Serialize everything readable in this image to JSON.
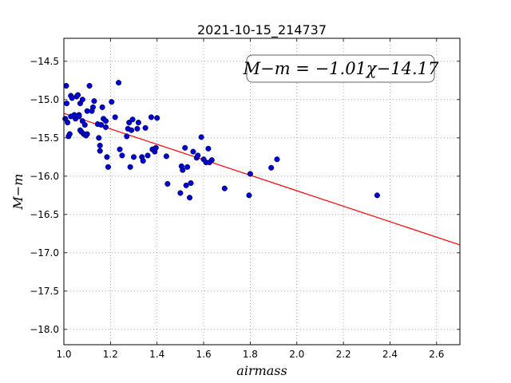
{
  "chart_data": {
    "type": "scatter",
    "title": "2021-10-15_214737",
    "xlabel": "airmass",
    "ylabel": "M−m",
    "xlim": [
      1.0,
      2.7
    ],
    "ylim": [
      -18.2,
      -14.2
    ],
    "y_inverted": true,
    "grid": true,
    "x_ticks": [
      1.0,
      1.2,
      1.4,
      1.6,
      1.8,
      2.0,
      2.2,
      2.4,
      2.6
    ],
    "x_tick_labels": [
      "1.0",
      "1.2",
      "1.4",
      "1.6",
      "1.8",
      "2.0",
      "2.2",
      "2.4",
      "2.6"
    ],
    "y_ticks": [
      -14.5,
      -15.0,
      -15.5,
      -16.0,
      -16.5,
      -17.0,
      -17.5,
      -18.0
    ],
    "y_tick_labels": [
      "−14.5",
      "−15.0",
      "−15.5",
      "−16.0",
      "−16.5",
      "−17.0",
      "−17.5",
      "−18.0"
    ],
    "annotation": "M−m = −1.01χ−14.17",
    "fit": {
      "slope": -1.01,
      "intercept": -14.17,
      "color": "#ff0000"
    },
    "point_color": "#0000cc",
    "points": [
      [
        1.006,
        -15.25
      ],
      [
        1.01,
        -14.82
      ],
      [
        1.012,
        -15.05
      ],
      [
        1.016,
        -15.3
      ],
      [
        1.02,
        -15.48
      ],
      [
        1.025,
        -15.45
      ],
      [
        1.03,
        -14.95
      ],
      [
        1.03,
        -15.22
      ],
      [
        1.035,
        -14.98
      ],
      [
        1.045,
        -15.2
      ],
      [
        1.05,
        -15.25
      ],
      [
        1.055,
        -14.96
      ],
      [
        1.06,
        -14.94
      ],
      [
        1.065,
        -15.2
      ],
      [
        1.065,
        -15.22
      ],
      [
        1.07,
        -15.05
      ],
      [
        1.07,
        -15.4
      ],
      [
        1.075,
        -15.42
      ],
      [
        1.08,
        -15.0
      ],
      [
        1.08,
        -15.28
      ],
      [
        1.085,
        -15.45
      ],
      [
        1.09,
        -15.33
      ],
      [
        1.095,
        -15.47
      ],
      [
        1.1,
        -15.45
      ],
      [
        1.1,
        -15.15
      ],
      [
        1.11,
        -14.82
      ],
      [
        1.12,
        -15.15
      ],
      [
        1.125,
        -15.1
      ],
      [
        1.13,
        -15.02
      ],
      [
        1.145,
        -15.32
      ],
      [
        1.15,
        -15.5
      ],
      [
        1.155,
        -15.6
      ],
      [
        1.155,
        -15.67
      ],
      [
        1.16,
        -15.33
      ],
      [
        1.165,
        -15.1
      ],
      [
        1.17,
        -15.25
      ],
      [
        1.18,
        -15.28
      ],
      [
        1.18,
        -15.36
      ],
      [
        1.185,
        -15.75
      ],
      [
        1.19,
        -15.88
      ],
      [
        1.205,
        -15.03
      ],
      [
        1.22,
        -15.23
      ],
      [
        1.235,
        -14.78
      ],
      [
        1.24,
        -15.65
      ],
      [
        1.25,
        -15.73
      ],
      [
        1.27,
        -15.48
      ],
      [
        1.275,
        -15.38
      ],
      [
        1.28,
        -15.3
      ],
      [
        1.285,
        -15.88
      ],
      [
        1.29,
        -15.4
      ],
      [
        1.295,
        -15.26
      ],
      [
        1.3,
        -15.75
      ],
      [
        1.315,
        -15.38
      ],
      [
        1.32,
        -15.3
      ],
      [
        1.335,
        -15.75
      ],
      [
        1.34,
        -15.8
      ],
      [
        1.35,
        -15.37
      ],
      [
        1.36,
        -15.73
      ],
      [
        1.375,
        -15.23
      ],
      [
        1.38,
        -15.65
      ],
      [
        1.385,
        -15.65
      ],
      [
        1.39,
        -15.68
      ],
      [
        1.395,
        -15.63
      ],
      [
        1.4,
        -15.24
      ],
      [
        1.44,
        -15.74
      ],
      [
        1.445,
        -16.1
      ],
      [
        1.5,
        -16.22
      ],
      [
        1.505,
        -15.87
      ],
      [
        1.51,
        -15.92
      ],
      [
        1.52,
        -15.63
      ],
      [
        1.525,
        -16.12
      ],
      [
        1.53,
        -15.88
      ],
      [
        1.54,
        -16.28
      ],
      [
        1.545,
        -16.09
      ],
      [
        1.555,
        -15.68
      ],
      [
        1.57,
        -15.76
      ],
      [
        1.575,
        -15.73
      ],
      [
        1.59,
        -15.49
      ],
      [
        1.6,
        -15.78
      ],
      [
        1.61,
        -15.82
      ],
      [
        1.62,
        -15.64
      ],
      [
        1.625,
        -15.82
      ],
      [
        1.635,
        -15.79
      ],
      [
        1.69,
        -16.16
      ],
      [
        1.795,
        -16.25
      ],
      [
        1.8,
        -15.97
      ],
      [
        1.89,
        -15.89
      ],
      [
        1.915,
        -15.78
      ],
      [
        2.345,
        -16.25
      ]
    ]
  }
}
